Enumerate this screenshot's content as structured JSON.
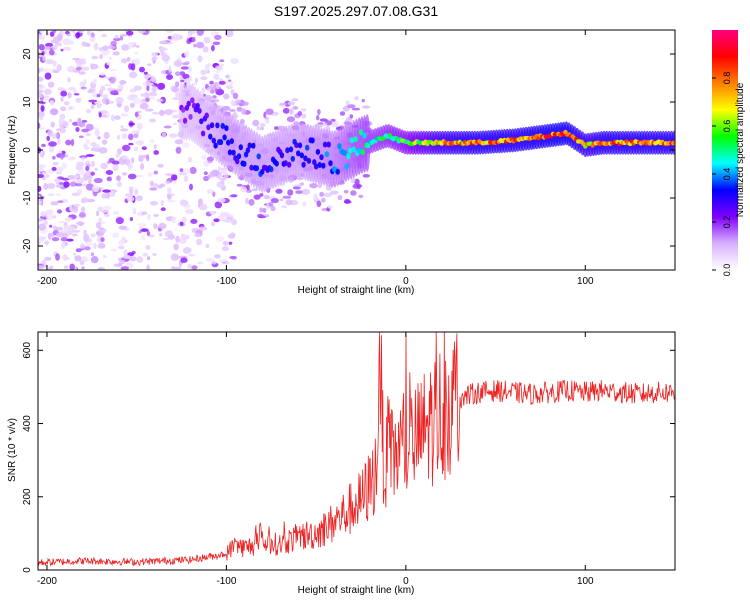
{
  "chart_data": [
    {
      "type": "heatmap",
      "title": "S197.2025.297.07.08.G31",
      "xlabel": "Height of straight line (km)",
      "ylabel": "Frequency (Hz)",
      "xlim": [
        -205,
        150
      ],
      "ylim": [
        -25,
        25
      ],
      "xticks": [
        -200,
        -100,
        0,
        100
      ],
      "yticks": [
        20,
        10,
        0,
        -10,
        -20
      ],
      "colorbar": {
        "label": "Normalized spectral amplitude",
        "range": [
          0,
          1
        ],
        "ticks": [
          0.0,
          0.2,
          0.4,
          0.6,
          0.8
        ],
        "colors": [
          "#ffffff",
          "#d8b0ff",
          "#8000ff",
          "#0000ff",
          "#00ffff",
          "#00ff00",
          "#ffff00",
          "#ff8000",
          "#ff0000",
          "#ff0080"
        ]
      },
      "ridge": {
        "x": [
          -120,
          -100,
          -80,
          -60,
          -40,
          -25,
          -10,
          0,
          20,
          40,
          60,
          80,
          90,
          100,
          110,
          150
        ],
        "y": [
          8,
          2,
          -3,
          0,
          -2,
          1,
          3,
          1.5,
          1.5,
          1.5,
          2,
          3,
          3.5,
          1,
          1.5,
          1.5
        ],
        "amplitude": [
          0.25,
          0.35,
          0.35,
          0.35,
          0.4,
          0.5,
          0.55,
          0.6,
          0.8,
          0.85,
          0.85,
          0.9,
          0.9,
          0.8,
          0.85,
          0.85
        ]
      }
    },
    {
      "type": "line",
      "xlabel": "Height of straight line (km)",
      "ylabel": "SNR (10 * v/v)",
      "xlim": [
        -205,
        150
      ],
      "ylim": [
        0,
        650
      ],
      "xticks": [
        -200,
        -100,
        0,
        100
      ],
      "yticks": [
        0,
        200,
        400,
        600
      ],
      "color": "#ee2222",
      "series": [
        {
          "name": "SNR",
          "x": [
            -205,
            -180,
            -150,
            -120,
            -105,
            -100,
            -95,
            -90,
            -80,
            -70,
            -60,
            -50,
            -40,
            -30,
            -25,
            -20,
            -16,
            -15,
            -12,
            -10,
            -5,
            0,
            5,
            10,
            15,
            20,
            25,
            30,
            40,
            50,
            60,
            70,
            80,
            90,
            100,
            110,
            120,
            130,
            140,
            150
          ],
          "values": [
            20,
            25,
            22,
            28,
            40,
            45,
            70,
            60,
            75,
            70,
            90,
            100,
            130,
            170,
            190,
            230,
            280,
            620,
            270,
            300,
            320,
            340,
            350,
            380,
            410,
            430,
            455,
            470,
            485,
            490,
            485,
            480,
            485,
            490,
            485,
            490,
            485,
            480,
            485,
            485
          ]
        }
      ]
    }
  ]
}
